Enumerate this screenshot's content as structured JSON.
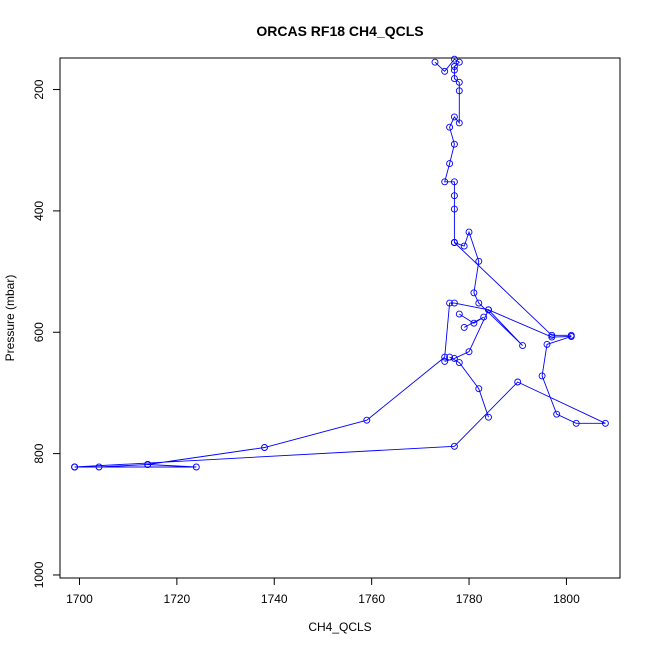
{
  "chart_data": {
    "type": "line",
    "title": "ORCAS RF18 CH4_QCLS",
    "xlabel": "CH4_QCLS",
    "ylabel": "Pressure (mbar)",
    "xlim": [
      1696,
      1811
    ],
    "ylim": [
      1005,
      148
    ],
    "y_reversed": true,
    "x_ticks": [
      1700,
      1720,
      1740,
      1760,
      1780,
      1800
    ],
    "y_ticks": [
      200,
      400,
      600,
      800,
      1000
    ],
    "grid": false,
    "series": [
      {
        "color": "#0000ff",
        "points": [
          [
            1699,
            822
          ],
          [
            1704,
            822
          ],
          [
            1714,
            818
          ],
          [
            1724,
            822
          ],
          [
            1699,
            822
          ],
          [
            1777,
            788
          ],
          [
            1790,
            682
          ],
          [
            1808,
            750
          ],
          [
            1802,
            750
          ],
          [
            1798,
            735
          ],
          [
            1795,
            672
          ],
          [
            1796,
            620
          ],
          [
            1801,
            607
          ],
          [
            1797,
            608
          ],
          [
            1784,
            563
          ],
          [
            1777,
            552
          ],
          [
            1776,
            552
          ],
          [
            1775,
            641
          ],
          [
            1759,
            745
          ],
          [
            1738,
            790
          ],
          [
            1714,
            818
          ]
        ]
      },
      {
        "color": "#0000ff",
        "points": [
          [
            1776,
            641
          ],
          [
            1778,
            650
          ],
          [
            1782,
            693
          ],
          [
            1784,
            740
          ]
        ]
      },
      {
        "color": "#0000ff",
        "points": [
          [
            1775,
            648
          ],
          [
            1777,
            643
          ],
          [
            1780,
            632
          ],
          [
            1784,
            563
          ],
          [
            1791,
            622
          ],
          [
            1782,
            552
          ],
          [
            1781,
            535
          ],
          [
            1782,
            483
          ],
          [
            1780,
            435
          ],
          [
            1779,
            458
          ],
          [
            1777,
            452
          ],
          [
            1777,
            397
          ],
          [
            1777,
            375
          ],
          [
            1777,
            352
          ],
          [
            1775,
            352
          ],
          [
            1776,
            322
          ],
          [
            1777,
            290
          ],
          [
            1776,
            262
          ],
          [
            1777,
            245
          ],
          [
            1778,
            255
          ],
          [
            1778,
            202
          ],
          [
            1778,
            188
          ],
          [
            1777,
            182
          ],
          [
            1777,
            168
          ],
          [
            1777,
            162
          ],
          [
            1778,
            155
          ],
          [
            1777,
            150
          ],
          [
            1775,
            170
          ],
          [
            1773,
            155
          ]
        ]
      },
      {
        "color": "#0000ff",
        "points": [
          [
            1777,
            452
          ],
          [
            1797,
            605
          ],
          [
            1801,
            605
          ]
        ]
      },
      {
        "color": "#0000ff",
        "points": [
          [
            1778,
            570
          ],
          [
            1781,
            585
          ],
          [
            1783,
            575
          ],
          [
            1779,
            592
          ]
        ]
      }
    ]
  }
}
